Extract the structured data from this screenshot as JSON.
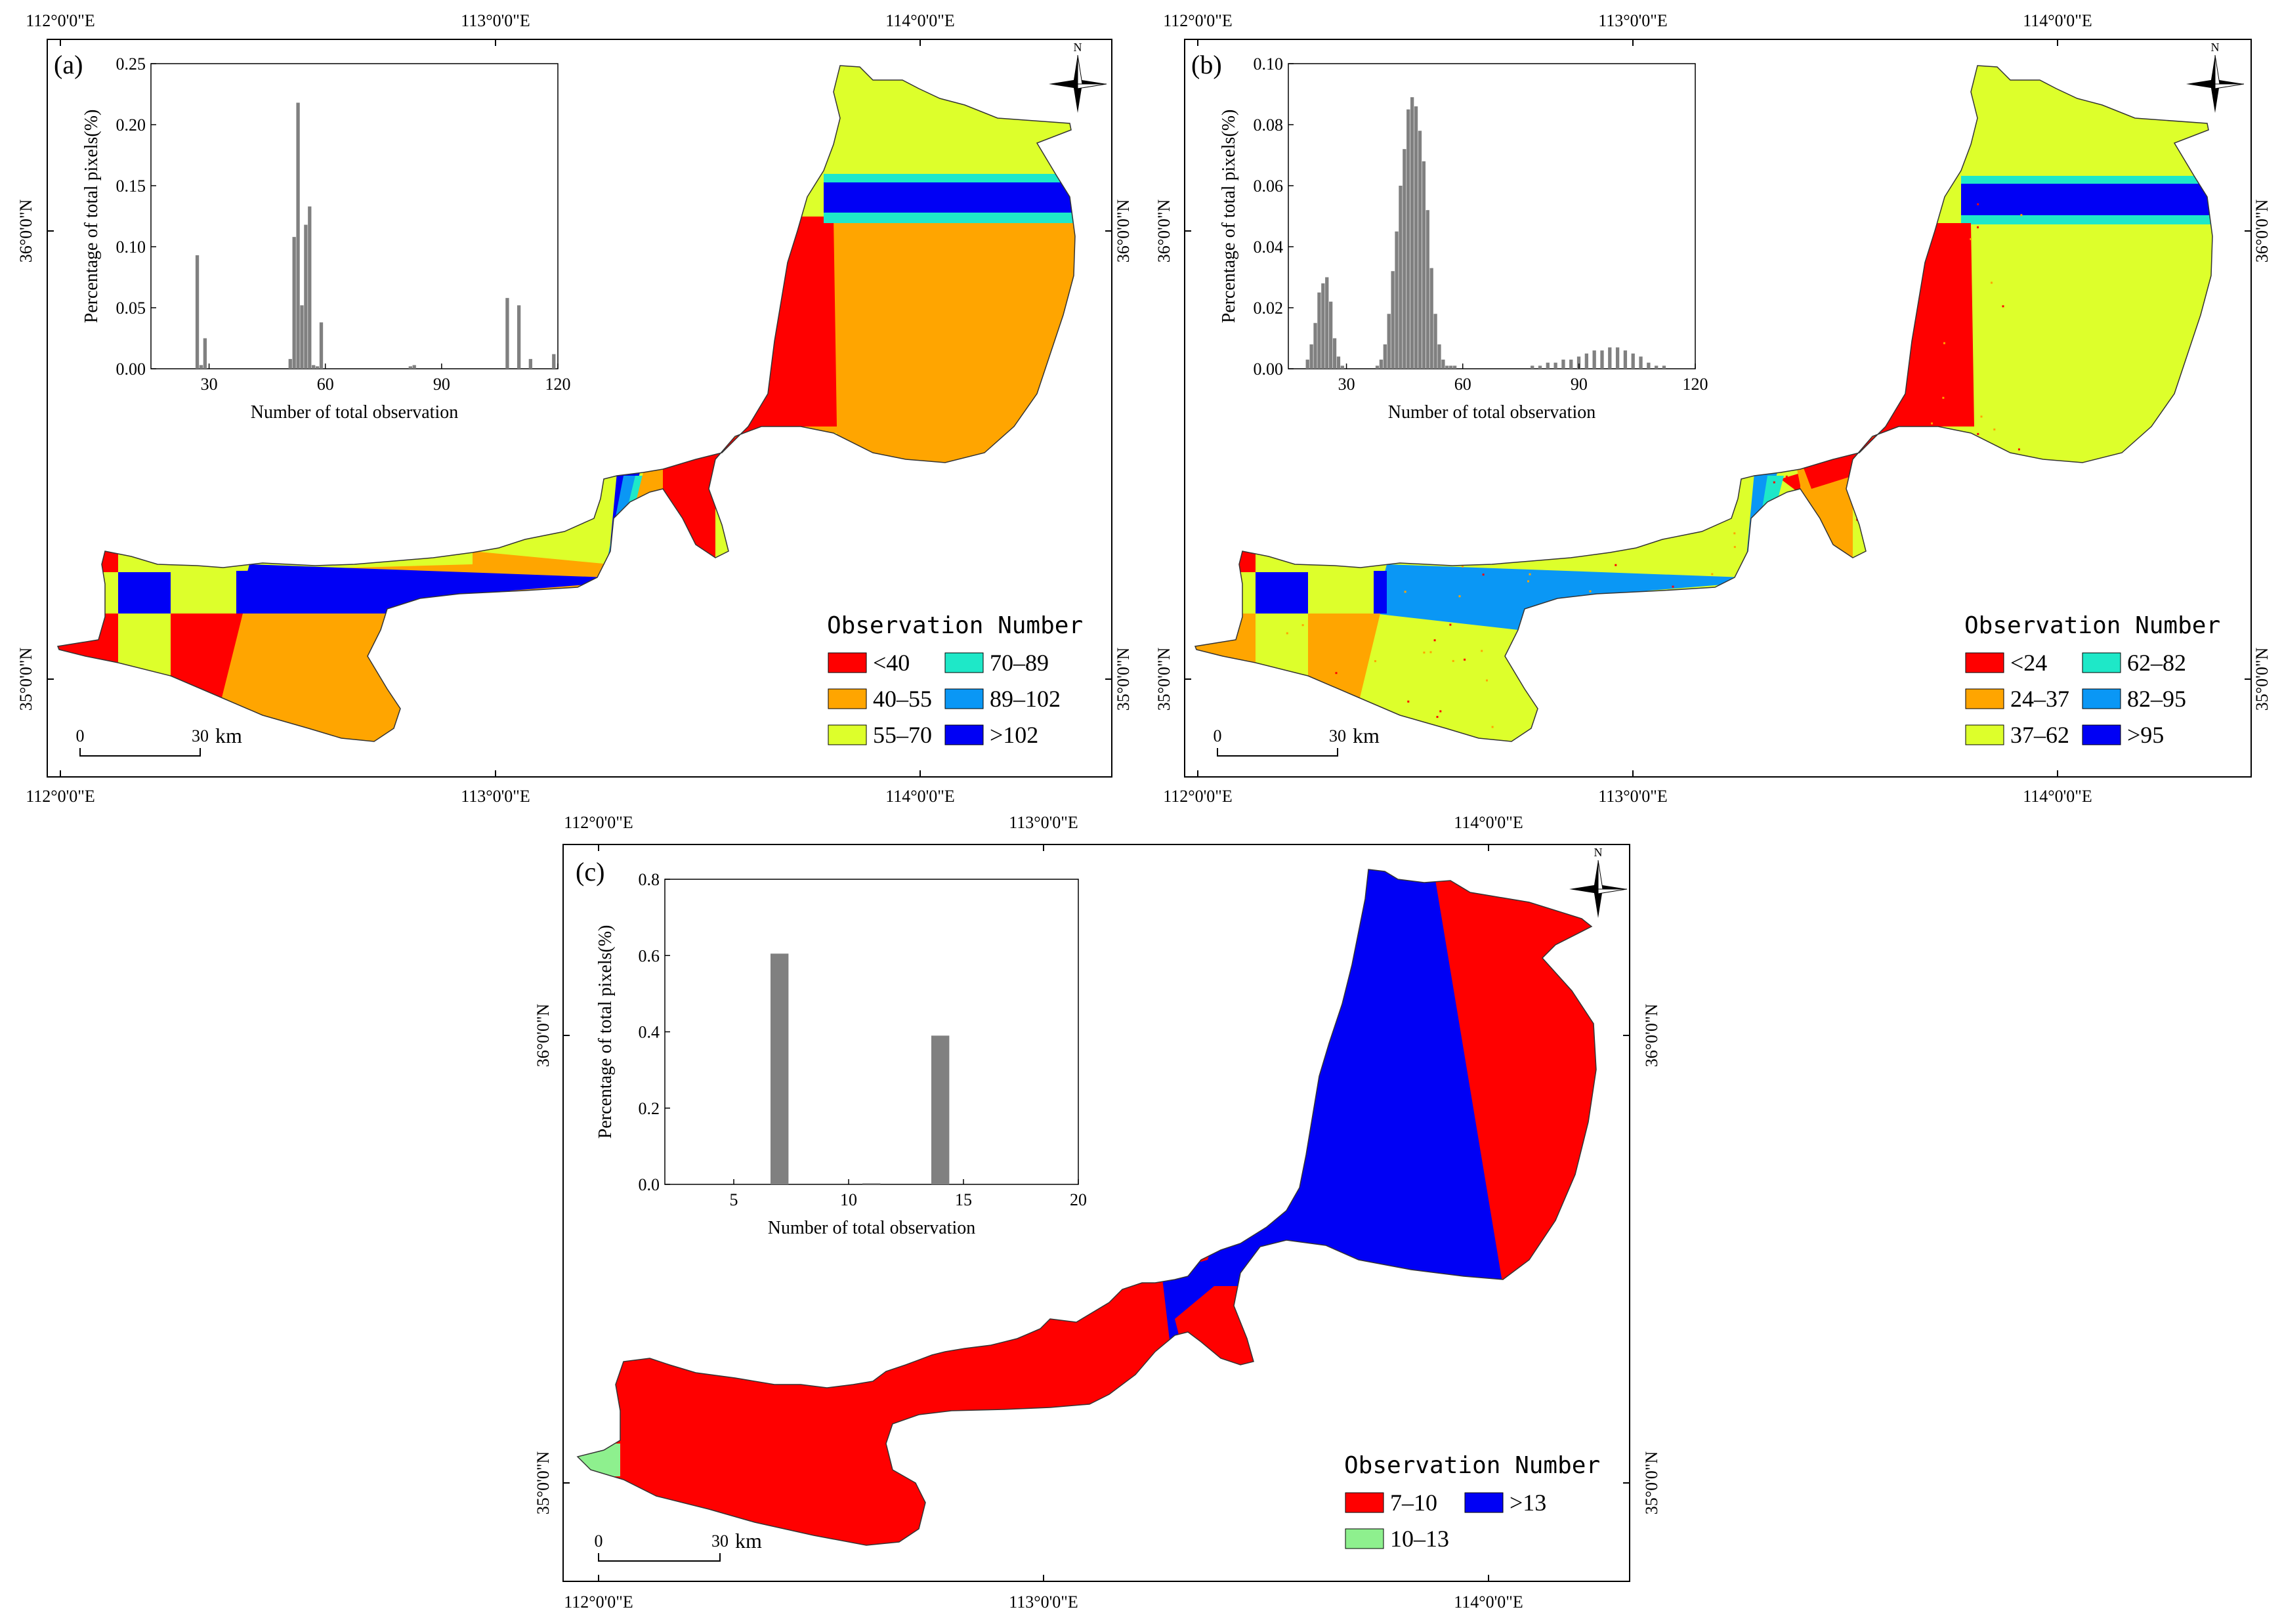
{
  "colors": {
    "red": "#ff0000",
    "orange": "#ffa500",
    "yellow": "#ddff2b",
    "cyan": "#1ee8c8",
    "lightblue": "#0a97f5",
    "blue": "#0000f5",
    "lightgreen": "#8ef08e",
    "bar": "#808080"
  },
  "panels": {
    "a": {
      "label": "(a)",
      "lon_ticks": [
        "112°0'0\"E",
        "113°0'0\"E",
        "114°0'0\"E"
      ],
      "lat_ticks": [
        "36°0'0\"N",
        "35°0'0\"N"
      ],
      "legend_title": "Observation Number",
      "legend": [
        {
          "label": "<40",
          "color": "red"
        },
        {
          "label": "70–89",
          "color": "cyan"
        },
        {
          "label": "40–55",
          "color": "orange"
        },
        {
          "label": "89–102",
          "color": "lightblue"
        },
        {
          "label": "55–70",
          "color": "yellow"
        },
        {
          "label": ">102",
          "color": "blue"
        }
      ],
      "north": "N",
      "scale": {
        "zero": "0",
        "end": "30",
        "unit": "km"
      },
      "chart_data": {
        "type": "bar",
        "xlabel": "Number of total observation",
        "ylabel": "Percentage of total pixels(%)",
        "xlim": [
          15,
          120
        ],
        "ylim": [
          0,
          0.25
        ],
        "xticks": [
          "30",
          "60",
          "90",
          "120"
        ],
        "yticks": [
          "0.00",
          "0.05",
          "0.10",
          "0.15",
          "0.20",
          "0.25"
        ],
        "bar_width": 1,
        "x": [
          27,
          28,
          29,
          51,
          52,
          53,
          54,
          55,
          56,
          57,
          58,
          59,
          82,
          83,
          107,
          110,
          113,
          119
        ],
        "values": [
          0.093,
          0.003,
          0.025,
          0.008,
          0.108,
          0.218,
          0.052,
          0.118,
          0.133,
          0.003,
          0.002,
          0.038,
          0.002,
          0.003,
          0.058,
          0.052,
          0.008,
          0.012
        ]
      }
    },
    "b": {
      "label": "(b)",
      "lon_ticks": [
        "112°0'0\"E",
        "113°0'0\"E",
        "114°0'0\"E"
      ],
      "lat_ticks": [
        "36°0'0\"N",
        "35°0'0\"N"
      ],
      "legend_title": "Observation Number",
      "legend": [
        {
          "label": "<24",
          "color": "red"
        },
        {
          "label": "62–82",
          "color": "cyan"
        },
        {
          "label": "24–37",
          "color": "orange"
        },
        {
          "label": "82–95",
          "color": "lightblue"
        },
        {
          "label": "37–62",
          "color": "yellow"
        },
        {
          "label": ">95",
          "color": "blue"
        }
      ],
      "north": "N",
      "scale": {
        "zero": "0",
        "end": "30",
        "unit": "km"
      },
      "chart_data": {
        "type": "bar",
        "xlabel": "Number of total observation",
        "ylabel": "Percentage of total pixels(%)",
        "xlim": [
          15,
          120
        ],
        "ylim": [
          0,
          0.1
        ],
        "xticks": [
          "30",
          "60",
          "90",
          "120"
        ],
        "yticks": [
          "0.00",
          "0.02",
          "0.04",
          "0.06",
          "0.08",
          "0.10"
        ],
        "bar_width": 1,
        "x": [
          20,
          21,
          22,
          23,
          24,
          25,
          26,
          27,
          28,
          29,
          38,
          39,
          40,
          41,
          42,
          43,
          44,
          45,
          46,
          47,
          48,
          49,
          50,
          51,
          52,
          53,
          54,
          55,
          56,
          57,
          58,
          78,
          80,
          82,
          84,
          86,
          88,
          90,
          92,
          94,
          96,
          98,
          100,
          102,
          104,
          106,
          108,
          110,
          112
        ],
        "values": [
          0.003,
          0.008,
          0.015,
          0.025,
          0.028,
          0.03,
          0.022,
          0.01,
          0.004,
          0.001,
          0.001,
          0.003,
          0.008,
          0.018,
          0.032,
          0.045,
          0.06,
          0.072,
          0.085,
          0.089,
          0.086,
          0.078,
          0.068,
          0.052,
          0.033,
          0.018,
          0.008,
          0.003,
          0.001,
          0.001,
          0.001,
          0.001,
          0.001,
          0.002,
          0.002,
          0.003,
          0.003,
          0.004,
          0.005,
          0.006,
          0.006,
          0.007,
          0.007,
          0.006,
          0.005,
          0.004,
          0.002,
          0.001,
          0.001
        ]
      }
    },
    "c": {
      "label": "(c)",
      "lon_ticks": [
        "112°0'0\"E",
        "113°0'0\"E",
        "114°0'0\"E"
      ],
      "lat_ticks": [
        "36°0'0\"N",
        "35°0'0\"N"
      ],
      "legend_title": "Observation Number",
      "legend": [
        {
          "label": "7–10",
          "color": "red"
        },
        {
          "label": ">13",
          "color": "blue"
        },
        {
          "label": "10–13",
          "color": "lightgreen"
        }
      ],
      "north": "N",
      "scale": {
        "zero": "0",
        "end": "30",
        "unit": "km"
      },
      "chart_data": {
        "type": "bar",
        "xlabel": "Number of total observation",
        "ylabel": "Percentage of total pixels(%)",
        "xlim": [
          2,
          20
        ],
        "ylim": [
          0,
          0.8
        ],
        "xticks": [
          "5",
          "10",
          "15",
          "20"
        ],
        "yticks": [
          "0.0",
          "0.2",
          "0.4",
          "0.6",
          "0.8"
        ],
        "bar_width": 0.8,
        "x": [
          7,
          11,
          14
        ],
        "values": [
          0.605,
          0.003,
          0.39
        ]
      }
    }
  }
}
